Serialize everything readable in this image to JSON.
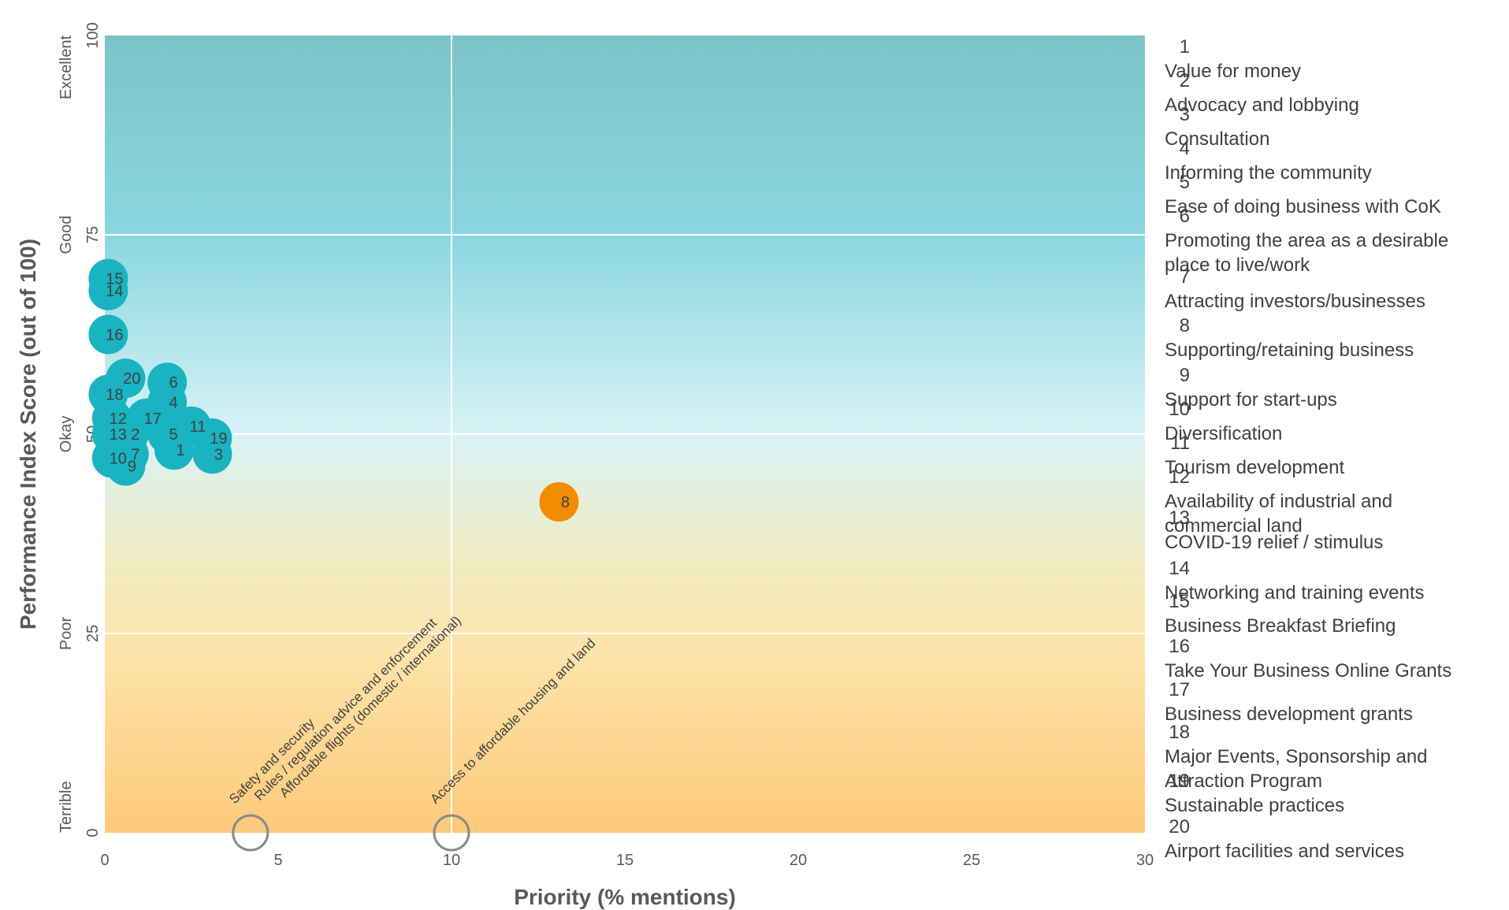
{
  "colors": {
    "bubble": "#19b3c2",
    "highlight": "#f28c00",
    "grid": "#ffffff",
    "hollow": "#8a8a8a",
    "bg_top": "#7cc4c8",
    "bg_mid": "#d8f0f2",
    "bg_bottom": "#fdc97a"
  },
  "chart_data": {
    "type": "scatter",
    "xlabel": "Priority (% mentions)",
    "ylabel": "Performance Index Score (out of 100)",
    "xlim": [
      0,
      30
    ],
    "ylim": [
      0,
      100
    ],
    "x_ticks": [
      "0",
      "5",
      "10",
      "15",
      "20",
      "25",
      "30"
    ],
    "y_ticks": [
      "0",
      "25",
      "50",
      "75",
      "100"
    ],
    "y_ticks_values": [
      0,
      25,
      50,
      75,
      100
    ],
    "y_band_labels": [
      {
        "label": "Terrible",
        "y": 0
      },
      {
        "label": "Poor",
        "y": 25
      },
      {
        "label": "Okay",
        "y": 50
      },
      {
        "label": "Good",
        "y": 75
      },
      {
        "label": "Excellent",
        "y": 100
      }
    ],
    "vertical_reference_x": 10,
    "grid": true,
    "points": [
      {
        "id": "1",
        "x": 2.0,
        "y": 48.0
      },
      {
        "id": "2",
        "x": 0.7,
        "y": 50.0
      },
      {
        "id": "3",
        "x": 3.1,
        "y": 47.5
      },
      {
        "id": "4",
        "x": 1.8,
        "y": 54.0
      },
      {
        "id": "5",
        "x": 1.8,
        "y": 50.0
      },
      {
        "id": "6",
        "x": 1.8,
        "y": 56.5
      },
      {
        "id": "7",
        "x": 0.7,
        "y": 47.5
      },
      {
        "id": "8",
        "x": 13.1,
        "y": 41.5,
        "highlight": true
      },
      {
        "id": "9",
        "x": 0.6,
        "y": 46.0
      },
      {
        "id": "10",
        "x": 0.2,
        "y": 47.0
      },
      {
        "id": "11",
        "x": 2.5,
        "y": 51.0
      },
      {
        "id": "12",
        "x": 0.2,
        "y": 52.0
      },
      {
        "id": "13",
        "x": 0.2,
        "y": 50.0
      },
      {
        "id": "14",
        "x": 0.1,
        "y": 68.0
      },
      {
        "id": "15",
        "x": 0.1,
        "y": 69.5
      },
      {
        "id": "16",
        "x": 0.1,
        "y": 62.5
      },
      {
        "id": "17",
        "x": 1.2,
        "y": 52.0
      },
      {
        "id": "18",
        "x": 0.1,
        "y": 55.0
      },
      {
        "id": "19",
        "x": 3.1,
        "y": 49.5
      },
      {
        "id": "20",
        "x": 0.6,
        "y": 57.0
      }
    ],
    "zero_score_items": [
      {
        "x": 4.2,
        "y": 0,
        "labels": [
          "Safety and security",
          "Rules / regulation advice and enforcement",
          "Affordable flights (domestic / international)"
        ]
      },
      {
        "x": 10.0,
        "y": 0,
        "labels": [
          "Access to affordable housing and land"
        ]
      }
    ],
    "legend": [
      {
        "num": "1",
        "lines": [
          "Value for money"
        ]
      },
      {
        "num": "2",
        "lines": [
          "Advocacy and lobbying"
        ]
      },
      {
        "num": "3",
        "lines": [
          "Consultation"
        ]
      },
      {
        "num": "4",
        "lines": [
          "Informing the community"
        ]
      },
      {
        "num": "5",
        "lines": [
          "Ease of doing business with CoK"
        ]
      },
      {
        "num": "6",
        "lines": [
          "Promoting the area as a desirable",
          "place to live/work"
        ]
      },
      {
        "num": "7",
        "lines": [
          "Attracting investors/businesses"
        ]
      },
      {
        "num": "8",
        "lines": [
          "Supporting/retaining business"
        ]
      },
      {
        "num": "9",
        "lines": [
          "Support for start-ups"
        ]
      },
      {
        "num": "10",
        "lines": [
          "Diversification"
        ]
      },
      {
        "num": "11",
        "lines": [
          "Tourism development"
        ]
      },
      {
        "num": "12",
        "lines": [
          "Availability of industrial and",
          "commercial land"
        ]
      },
      {
        "num": "13",
        "lines": [
          "COVID-19 relief / stimulus"
        ]
      },
      {
        "num": "14",
        "lines": [
          "Networking and training events"
        ]
      },
      {
        "num": "15",
        "lines": [
          "Business Breakfast Briefing"
        ]
      },
      {
        "num": "16",
        "lines": [
          "Take Your Business Online Grants"
        ]
      },
      {
        "num": "17",
        "lines": [
          "Business development grants"
        ]
      },
      {
        "num": "18",
        "lines": [
          "Major Events, Sponsorship and",
          "Attraction Program"
        ]
      },
      {
        "num": "19",
        "lines": [
          "Sustainable practices"
        ]
      },
      {
        "num": "20",
        "lines": [
          "Airport facilities and services"
        ]
      }
    ]
  }
}
